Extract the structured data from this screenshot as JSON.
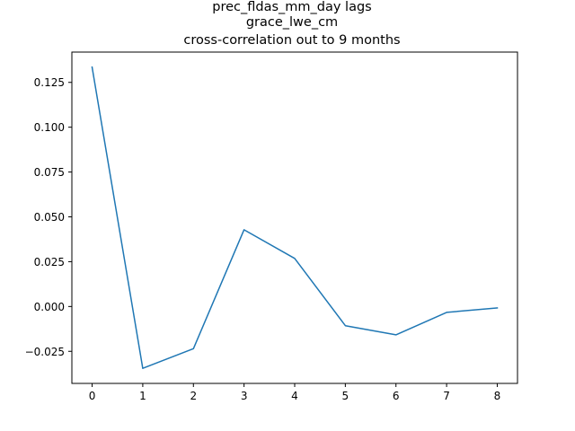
{
  "chart_data": {
    "type": "line",
    "title_lines": [
      "prec_fldas_mm_day lags",
      "grace_lwe_cm",
      "cross-correlation out to 9 months"
    ],
    "xlabel": "",
    "ylabel": "",
    "x": [
      0,
      1,
      2,
      3,
      4,
      5,
      6,
      7,
      8
    ],
    "series": [
      {
        "values": [
          0.1335,
          -0.0345,
          -0.0235,
          0.0428,
          0.0268,
          -0.0107,
          -0.0158,
          -0.0033,
          -0.0008
        ],
        "color": "#1f77b4"
      }
    ],
    "xticks": [
      "0",
      "1",
      "2",
      "3",
      "4",
      "5",
      "6",
      "7",
      "8"
    ],
    "yticks": [
      "−0.025",
      "0.000",
      "0.025",
      "0.050",
      "0.075",
      "0.100",
      "0.125"
    ],
    "ytick_values": [
      -0.025,
      0.0,
      0.025,
      0.05,
      0.075,
      0.1,
      0.125
    ],
    "xlim": [
      -0.4,
      8.4
    ],
    "ylim": [
      -0.0429,
      0.1419
    ],
    "grid": false,
    "legend": "none"
  }
}
